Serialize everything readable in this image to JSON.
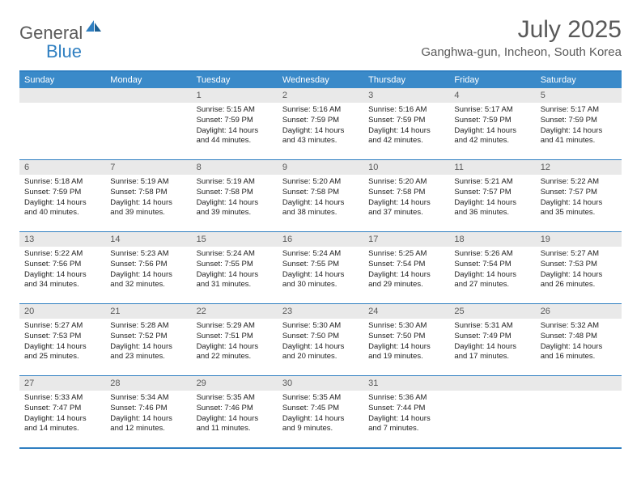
{
  "brand": {
    "part1": "General",
    "part2": "Blue"
  },
  "title": "July 2025",
  "location": "Ganghwa-gun, Incheon, South Korea",
  "columns": [
    "Sunday",
    "Monday",
    "Tuesday",
    "Wednesday",
    "Thursday",
    "Friday",
    "Saturday"
  ],
  "colors": {
    "header_bg": "#3a8ac9",
    "border": "#2f7fc1",
    "daynum_bg": "#e9e9e9",
    "text_gray": "#595959"
  },
  "weeks": [
    [
      null,
      null,
      {
        "n": "1",
        "sr": "5:15 AM",
        "ss": "7:59 PM",
        "dl": "14 hours and 44 minutes."
      },
      {
        "n": "2",
        "sr": "5:16 AM",
        "ss": "7:59 PM",
        "dl": "14 hours and 43 minutes."
      },
      {
        "n": "3",
        "sr": "5:16 AM",
        "ss": "7:59 PM",
        "dl": "14 hours and 42 minutes."
      },
      {
        "n": "4",
        "sr": "5:17 AM",
        "ss": "7:59 PM",
        "dl": "14 hours and 42 minutes."
      },
      {
        "n": "5",
        "sr": "5:17 AM",
        "ss": "7:59 PM",
        "dl": "14 hours and 41 minutes."
      }
    ],
    [
      {
        "n": "6",
        "sr": "5:18 AM",
        "ss": "7:59 PM",
        "dl": "14 hours and 40 minutes."
      },
      {
        "n": "7",
        "sr": "5:19 AM",
        "ss": "7:58 PM",
        "dl": "14 hours and 39 minutes."
      },
      {
        "n": "8",
        "sr": "5:19 AM",
        "ss": "7:58 PM",
        "dl": "14 hours and 39 minutes."
      },
      {
        "n": "9",
        "sr": "5:20 AM",
        "ss": "7:58 PM",
        "dl": "14 hours and 38 minutes."
      },
      {
        "n": "10",
        "sr": "5:20 AM",
        "ss": "7:58 PM",
        "dl": "14 hours and 37 minutes."
      },
      {
        "n": "11",
        "sr": "5:21 AM",
        "ss": "7:57 PM",
        "dl": "14 hours and 36 minutes."
      },
      {
        "n": "12",
        "sr": "5:22 AM",
        "ss": "7:57 PM",
        "dl": "14 hours and 35 minutes."
      }
    ],
    [
      {
        "n": "13",
        "sr": "5:22 AM",
        "ss": "7:56 PM",
        "dl": "14 hours and 34 minutes."
      },
      {
        "n": "14",
        "sr": "5:23 AM",
        "ss": "7:56 PM",
        "dl": "14 hours and 32 minutes."
      },
      {
        "n": "15",
        "sr": "5:24 AM",
        "ss": "7:55 PM",
        "dl": "14 hours and 31 minutes."
      },
      {
        "n": "16",
        "sr": "5:24 AM",
        "ss": "7:55 PM",
        "dl": "14 hours and 30 minutes."
      },
      {
        "n": "17",
        "sr": "5:25 AM",
        "ss": "7:54 PM",
        "dl": "14 hours and 29 minutes."
      },
      {
        "n": "18",
        "sr": "5:26 AM",
        "ss": "7:54 PM",
        "dl": "14 hours and 27 minutes."
      },
      {
        "n": "19",
        "sr": "5:27 AM",
        "ss": "7:53 PM",
        "dl": "14 hours and 26 minutes."
      }
    ],
    [
      {
        "n": "20",
        "sr": "5:27 AM",
        "ss": "7:53 PM",
        "dl": "14 hours and 25 minutes."
      },
      {
        "n": "21",
        "sr": "5:28 AM",
        "ss": "7:52 PM",
        "dl": "14 hours and 23 minutes."
      },
      {
        "n": "22",
        "sr": "5:29 AM",
        "ss": "7:51 PM",
        "dl": "14 hours and 22 minutes."
      },
      {
        "n": "23",
        "sr": "5:30 AM",
        "ss": "7:50 PM",
        "dl": "14 hours and 20 minutes."
      },
      {
        "n": "24",
        "sr": "5:30 AM",
        "ss": "7:50 PM",
        "dl": "14 hours and 19 minutes."
      },
      {
        "n": "25",
        "sr": "5:31 AM",
        "ss": "7:49 PM",
        "dl": "14 hours and 17 minutes."
      },
      {
        "n": "26",
        "sr": "5:32 AM",
        "ss": "7:48 PM",
        "dl": "14 hours and 16 minutes."
      }
    ],
    [
      {
        "n": "27",
        "sr": "5:33 AM",
        "ss": "7:47 PM",
        "dl": "14 hours and 14 minutes."
      },
      {
        "n": "28",
        "sr": "5:34 AM",
        "ss": "7:46 PM",
        "dl": "14 hours and 12 minutes."
      },
      {
        "n": "29",
        "sr": "5:35 AM",
        "ss": "7:46 PM",
        "dl": "14 hours and 11 minutes."
      },
      {
        "n": "30",
        "sr": "5:35 AM",
        "ss": "7:45 PM",
        "dl": "14 hours and 9 minutes."
      },
      {
        "n": "31",
        "sr": "5:36 AM",
        "ss": "7:44 PM",
        "dl": "14 hours and 7 minutes."
      },
      null,
      null
    ]
  ],
  "labels": {
    "sunrise": "Sunrise:",
    "sunset": "Sunset:",
    "daylight": "Daylight:"
  }
}
